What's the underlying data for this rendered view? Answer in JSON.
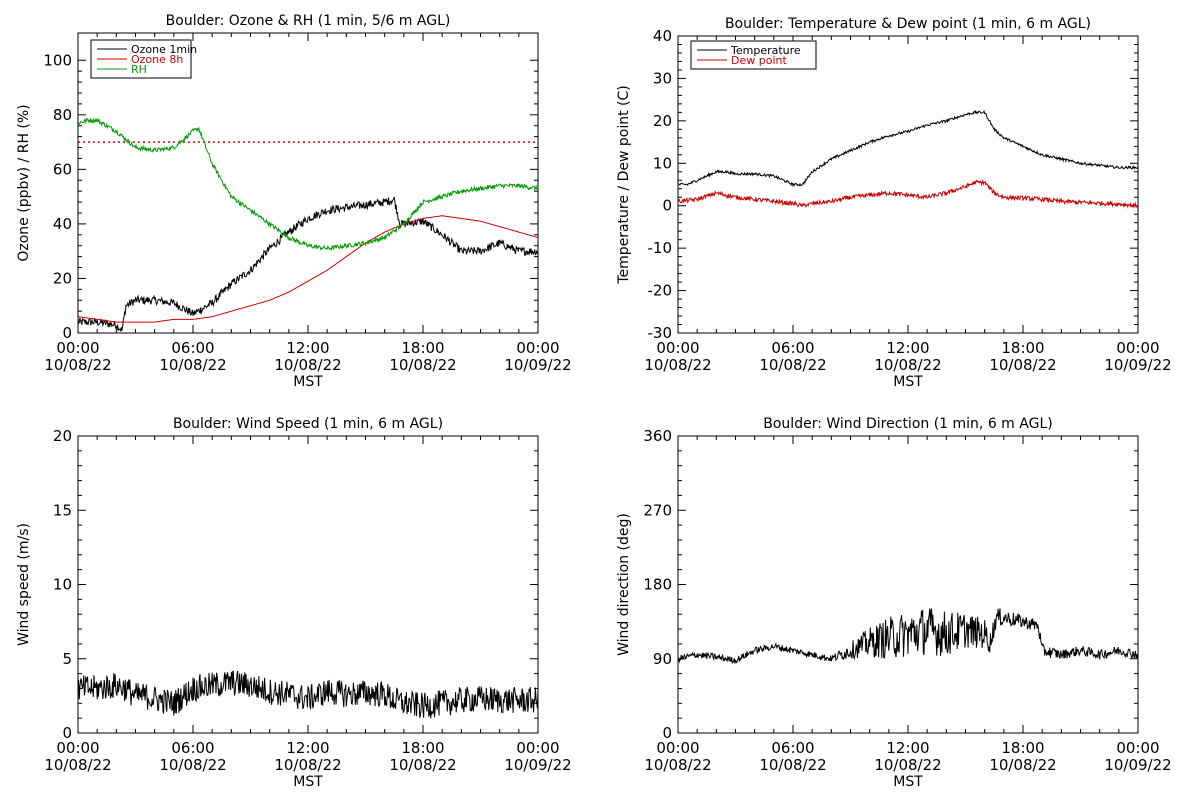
{
  "x_axis": {
    "ticks": [
      {
        "time": "00:00",
        "date": "10/08/22"
      },
      {
        "time": "06:00",
        "date": "10/08/22"
      },
      {
        "time": "12:00",
        "date": "10/08/22"
      },
      {
        "time": "18:00",
        "date": "10/08/22"
      },
      {
        "time": "00:00",
        "date": "10/09/22"
      }
    ],
    "label": "MST",
    "range_hours": [
      0,
      24
    ]
  },
  "chart_data": [
    {
      "type": "line",
      "title": "Boulder: Ozone & RH (1 min, 5/6 m AGL)",
      "xlabel": "MST",
      "ylabel": "Ozone (ppbv) / RH (%)",
      "ylim": [
        0,
        110
      ],
      "yticks": [
        0,
        20,
        40,
        60,
        80,
        100
      ],
      "legend": "top-left",
      "series": [
        {
          "name": "Ozone 1min",
          "color": "#000000",
          "x": [
            0,
            1,
            2,
            2.3,
            2.5,
            3,
            4,
            5,
            5.5,
            6,
            7,
            8,
            9,
            10,
            11,
            12,
            13,
            14,
            15,
            16,
            16.5,
            16.8,
            17,
            18,
            19,
            20,
            21,
            22,
            23,
            24
          ],
          "y": [
            4,
            4,
            3,
            1,
            10,
            12,
            12,
            11,
            9,
            7,
            11,
            18,
            23,
            31,
            37,
            42,
            45,
            46,
            47,
            48,
            49,
            40,
            40,
            41,
            36,
            30,
            30,
            33,
            30,
            30
          ]
        },
        {
          "name": "Ozone 8h",
          "color": "#cc0000",
          "x": [
            0,
            1,
            2,
            3,
            4,
            5,
            6,
            7,
            8,
            9,
            10,
            11,
            12,
            13,
            14,
            15,
            16,
            17,
            18,
            19,
            20,
            21,
            22,
            23,
            24
          ],
          "y": [
            6,
            5,
            4,
            4,
            4,
            5,
            5,
            6,
            8,
            10,
            12,
            15,
            19,
            23,
            28,
            33,
            37,
            40,
            42,
            43,
            42,
            41,
            39,
            37,
            35
          ]
        },
        {
          "name": "RH",
          "color": "#009900",
          "x": [
            0,
            0.5,
            1,
            1.5,
            2,
            2.5,
            3,
            4,
            5,
            5.5,
            6,
            6.3,
            7,
            7.5,
            8,
            9,
            10,
            11,
            12,
            13,
            14,
            15,
            16,
            17,
            18,
            19,
            20,
            21,
            22,
            23,
            24
          ],
          "y": [
            77,
            78,
            78,
            76,
            74,
            71,
            68,
            67,
            68,
            71,
            74,
            75,
            62,
            56,
            50,
            45,
            40,
            35,
            32,
            31,
            32,
            33,
            35,
            40,
            48,
            50,
            52,
            53,
            54,
            54,
            53
          ]
        }
      ],
      "reference_line": {
        "y": 70,
        "color": "#cc0000",
        "style": "dotted"
      }
    },
    {
      "type": "line",
      "title": "Boulder: Temperature & Dew point (1 min, 6 m AGL)",
      "xlabel": "MST",
      "ylabel": "Temperature / Dew point (C)",
      "ylim": [
        -30,
        40
      ],
      "yticks": [
        -30,
        -20,
        -10,
        0,
        10,
        20,
        30,
        40
      ],
      "legend": "top-left",
      "series": [
        {
          "name": "Temperature",
          "color": "#000000",
          "x": [
            0,
            0.5,
            1,
            1.5,
            2,
            2.5,
            3,
            4,
            5,
            5.5,
            6,
            6.5,
            7,
            8,
            9,
            10,
            11,
            12,
            13,
            14,
            15,
            15.5,
            16,
            16.5,
            17,
            18,
            19,
            20,
            21,
            22,
            23,
            24
          ],
          "y": [
            5,
            5,
            6,
            7,
            8,
            8,
            7.5,
            7.5,
            7,
            6,
            5,
            5,
            8,
            11,
            13,
            15,
            16.5,
            17.5,
            19,
            20,
            21.5,
            22,
            22,
            18,
            16,
            14,
            12,
            11,
            10,
            9.5,
            9,
            9
          ]
        },
        {
          "name": "Dew point",
          "color": "#cc0000",
          "x": [
            0,
            1,
            2,
            2.5,
            3,
            4,
            5,
            6,
            6.5,
            7,
            8,
            9,
            10,
            11,
            12,
            13,
            14,
            15,
            15.5,
            16,
            16.5,
            17,
            18,
            19,
            20,
            21,
            22,
            23,
            24
          ],
          "y": [
            1,
            1.5,
            3,
            2.5,
            2,
            1.5,
            1,
            0.5,
            0,
            0.5,
            1,
            2,
            2.5,
            3,
            2.5,
            2,
            3,
            4.5,
            5.5,
            5.5,
            3,
            2,
            1.8,
            1.5,
            1,
            0.8,
            0.6,
            0.4,
            0
          ]
        }
      ]
    },
    {
      "type": "line",
      "title": "Boulder: Wind Speed (1 min, 6 m AGL)",
      "xlabel": "MST",
      "ylabel": "Wind speed (m/s)",
      "ylim": [
        0,
        20
      ],
      "yticks": [
        0,
        5,
        10,
        15,
        20
      ],
      "series": [
        {
          "name": "",
          "color": "#000000",
          "x": [
            0,
            1,
            2,
            2.5,
            3,
            3.5,
            4,
            5,
            5.5,
            6,
            7,
            8,
            9,
            10,
            11,
            12,
            13,
            14,
            15,
            16,
            16.5,
            17,
            18,
            19,
            20,
            21,
            22,
            23,
            24
          ],
          "y": [
            3,
            3,
            3.2,
            3,
            2.5,
            2.5,
            2.3,
            2,
            2.5,
            3,
            3.2,
            3.4,
            3.2,
            2.8,
            2.6,
            2.3,
            2.8,
            2.6,
            2.7,
            2.6,
            2.2,
            2,
            1.8,
            2,
            2.2,
            2.3,
            2.2,
            2.2,
            2.2
          ],
          "amplitude": 0.9
        }
      ]
    },
    {
      "type": "line",
      "title": "Boulder: Wind Direction (1 min, 6 m AGL)",
      "xlabel": "MST",
      "ylabel": "Wind direction (deg)",
      "ylim": [
        0,
        360
      ],
      "yticks": [
        0,
        90,
        180,
        270,
        360
      ],
      "series": [
        {
          "name": "",
          "color": "#000000",
          "x": [
            0,
            1,
            2,
            3,
            4,
            5,
            6,
            7,
            8,
            9,
            10,
            11,
            12,
            13,
            14,
            15,
            16,
            16.3,
            16.6,
            17,
            18,
            18.8,
            19,
            20,
            21,
            22,
            23,
            24
          ],
          "y": [
            90,
            95,
            92,
            88,
            100,
            105,
            100,
            95,
            90,
            100,
            110,
            115,
            120,
            125,
            120,
            125,
            120,
            110,
            140,
            140,
            135,
            130,
            100,
            95,
            100,
            95,
            100,
            95
          ],
          "amplitude": [
            4,
            4,
            4,
            4,
            4,
            4,
            4,
            4,
            4,
            10,
            18,
            26,
            28,
            30,
            28,
            22,
            18,
            14,
            12,
            10,
            8,
            8,
            8,
            6,
            6,
            6,
            6,
            6
          ]
        }
      ]
    }
  ]
}
